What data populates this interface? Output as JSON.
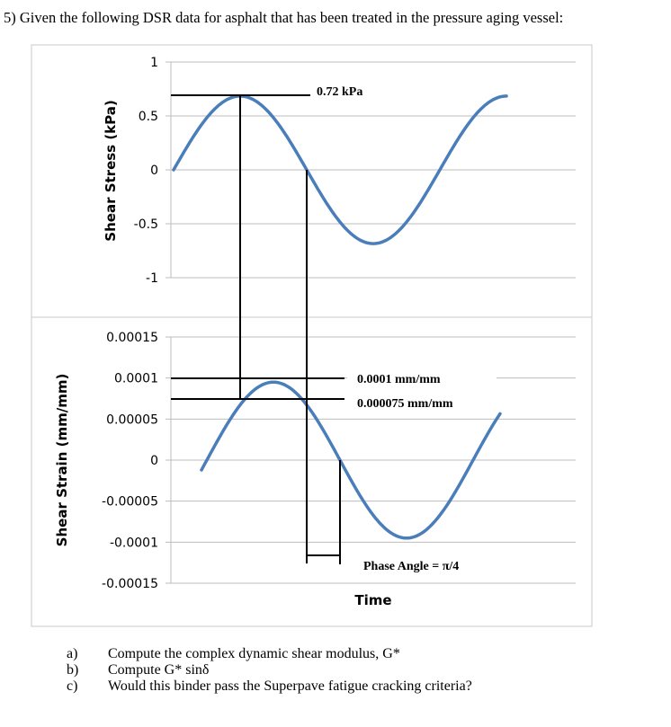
{
  "problem": {
    "title": "5)  Given the following DSR data for asphalt that has been treated in the pressure aging vessel:",
    "questions": [
      {
        "letter": "a)",
        "text": "Compute the complex dynamic shear modulus, G*"
      },
      {
        "letter": "b)",
        "text": "Compute G* sinδ"
      },
      {
        "letter": "c)",
        "text": "Would this binder pass the Superpave fatigue cracking criteria?"
      }
    ]
  },
  "chart_data": [
    {
      "type": "line",
      "ylabel": "Shear Stress (kPa)",
      "xlabel": "",
      "ylim": [
        -1,
        1
      ],
      "yticks": [
        "1",
        "0.5",
        "0",
        "-0.5",
        "-1"
      ],
      "grid": true,
      "series_color": "#4a7ebb",
      "series": [
        {
          "amplitude": 0.72,
          "phase_offset_rad": 0,
          "cycles": 1.25
        }
      ],
      "annotations": {
        "peak_label": "0.72 kPa"
      }
    },
    {
      "type": "line",
      "ylabel": "Shear Strain (mm/mm)",
      "xlabel": "Time",
      "ylim": [
        -0.00015,
        0.00015
      ],
      "yticks": [
        "0.00015",
        "0.0001",
        "0.00005",
        "0",
        "-0.00005",
        "-0.0001",
        "-0.00015"
      ],
      "grid": true,
      "series_color": "#4a7ebb",
      "series": [
        {
          "amplitude": 0.0001,
          "phase_offset_rad": 0.785,
          "cycles": 1.2
        }
      ],
      "annotations": {
        "peak_label": "0.0001 mm/mm",
        "intercept_label": "0.000075 mm/mm",
        "phase_label": "Phase Angle = π/4"
      }
    }
  ]
}
